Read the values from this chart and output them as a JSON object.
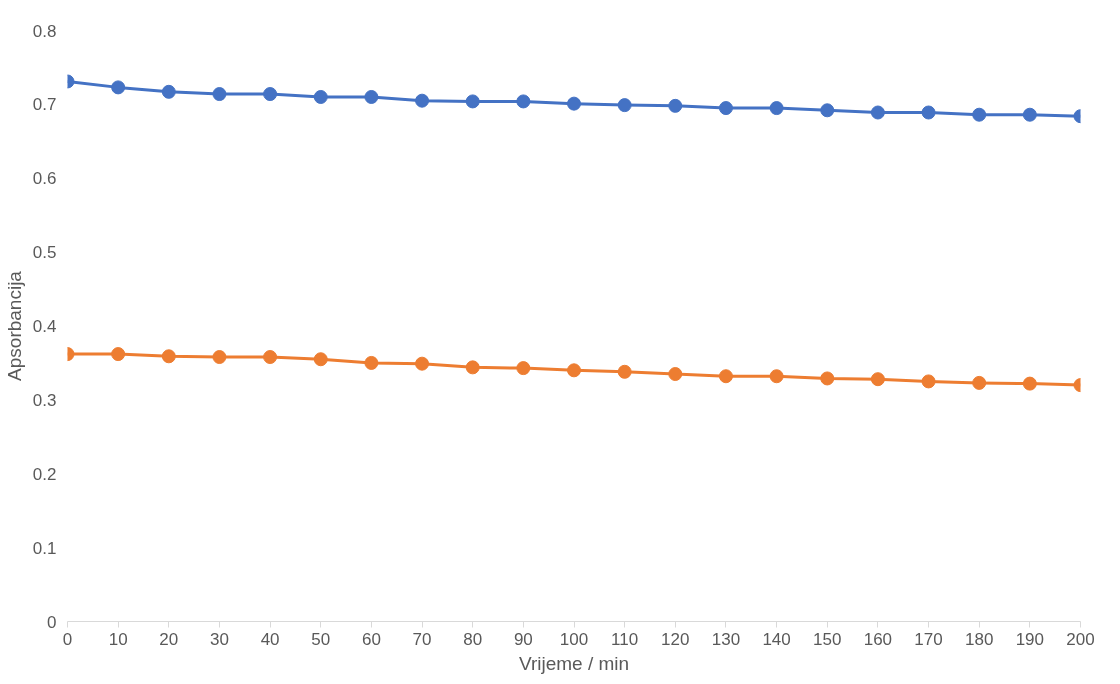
{
  "chart_data": {
    "type": "line",
    "xlabel": "Vrijeme / min",
    "ylabel": "Apsorbancija",
    "x": [
      0,
      10,
      20,
      30,
      40,
      50,
      60,
      70,
      80,
      90,
      100,
      110,
      120,
      130,
      140,
      150,
      160,
      170,
      180,
      190,
      200
    ],
    "series": [
      {
        "color": "#4472c4",
        "values": [
          0.731,
          0.723,
          0.717,
          0.714,
          0.714,
          0.71,
          0.71,
          0.705,
          0.704,
          0.704,
          0.701,
          0.699,
          0.698,
          0.695,
          0.695,
          0.692,
          0.689,
          0.689,
          0.686,
          0.686,
          0.684
        ]
      },
      {
        "color": "#ed7d31",
        "values": [
          0.362,
          0.362,
          0.359,
          0.358,
          0.358,
          0.355,
          0.35,
          0.349,
          0.344,
          0.343,
          0.34,
          0.338,
          0.335,
          0.332,
          0.332,
          0.329,
          0.328,
          0.325,
          0.323,
          0.322,
          0.32
        ]
      }
    ],
    "xlim": [
      0,
      200
    ],
    "xticks": [
      0,
      10,
      20,
      30,
      40,
      50,
      60,
      70,
      80,
      90,
      100,
      110,
      120,
      130,
      140,
      150,
      160,
      170,
      180,
      190,
      200
    ],
    "ylim": [
      0,
      0.8
    ],
    "yticks": [
      0,
      {
        "value": 0.1,
        "label": "0.1"
      },
      {
        "value": 0.2,
        "label": "0.2"
      },
      {
        "value": 0.3,
        "label": "0.3"
      },
      {
        "value": 0.4,
        "label": "0.4"
      },
      {
        "value": 0.5,
        "label": "0.5"
      },
      {
        "value": 0.6,
        "label": "0.6"
      },
      {
        "value": 0.7,
        "label": "0.7"
      },
      {
        "value": 0.8,
        "label": "0.8"
      }
    ],
    "marker": "circle",
    "line_style": "solid"
  }
}
